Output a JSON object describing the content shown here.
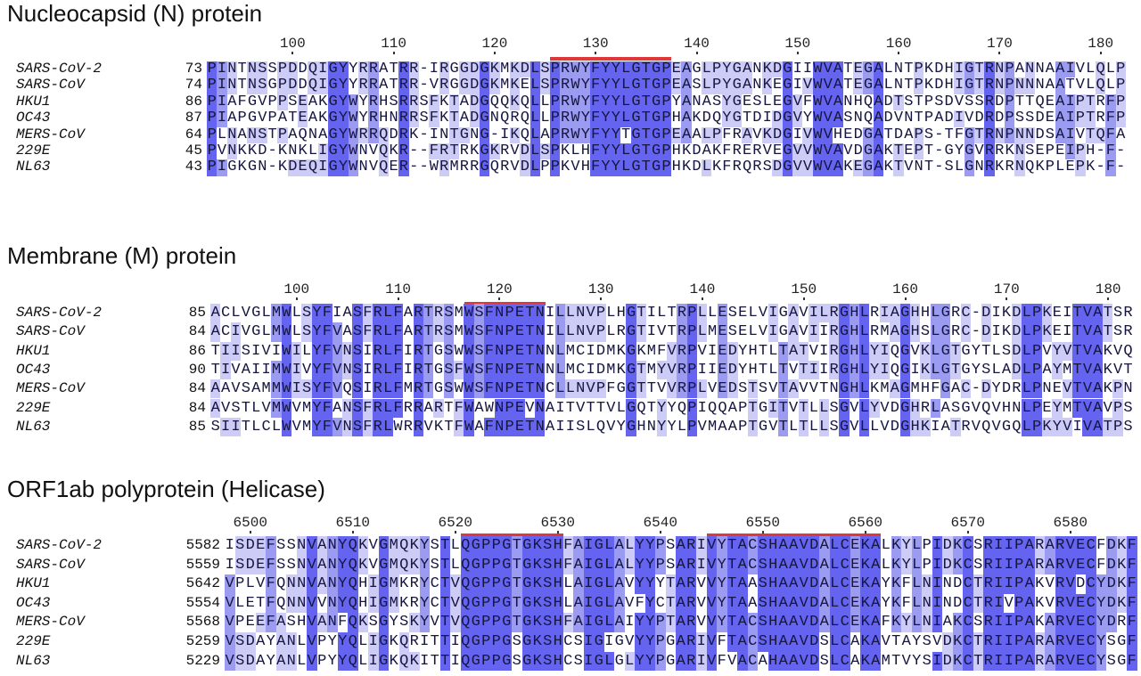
{
  "colors": {
    "high": "#6464f0",
    "mid": "#9b9bf2",
    "low": "#ccccf6",
    "motif_bar": "#e0383a"
  },
  "panels": [
    {
      "title": "Nucleocapsid (N) protein",
      "ruler": [
        100,
        110,
        120,
        130,
        140,
        150,
        160,
        170,
        180
      ],
      "motifs": [
        [
          126,
          137
        ]
      ],
      "sequences": [
        {
          "name": "SARS-CoV-2",
          "start": "73",
          "seq": "PINTNSSPDDQIGYYRRATRR-IRGGDGKMKDLSPRWYFYYLGTGPEAGLPYGANKDGIIWVATEGALNTPKDHIGTRNPANNAAIVLQLP"
        },
        {
          "name": "SARS-CoV",
          "start": "74",
          "seq": "PINTNSGPDDQIGYYRRATRR-VRGGDGKMKELSPRWYFYYLGTGPEASLPYGANKEGIVWVATEGALNTPKDHIGTRNPNNNAATVLQLP"
        },
        {
          "name": "HKU1",
          "start": "86",
          "seq": "PIAFGVPPSEAKGYWYRHSRRSFKTADGQQKQLLPRWYFYYLGTGPYANASYGESLEGVFWVANHQADTSTPSDVSSRDPTTQEAIPTRFP"
        },
        {
          "name": "OC43",
          "start": "87",
          "seq": "PIAPGVPATEAKGYWYRHNRRSFKTADGNQRQLLPRWYFYYLGTGPHAKDQYGTDIDGVYWVASNQADVNTPADIVDRDPSSDEAIPTRFP"
        },
        {
          "name": "MERS-CoV",
          "start": "64",
          "seq": "PLNANSTPAQNAGYWRRQDRK-INTGNG-IKQLAPRWYFYYTGTGPEAALPFRAVKDGIVWVHEDGATDAPS-TFGTRNPNNDSAIVTQFA"
        },
        {
          "name": "229E",
          "start": "45",
          "seq": "PVNKKD-KNKLIGYWNVQKR--FRTRKGKRVDLSPKLHFYYLGTGPHKDAKFRERVEGVVWVAVDGAKTEPT-GYGVRRKNSEPEIPH-F-"
        },
        {
          "name": "NL63",
          "start": "43",
          "seq": "PIGKGN-KDEQIGYWNVQER--WRMRRGQRVDLPPKVHFYYLGTGPHKDLKFRQRSDGVVWVAKEGAKTVNT-SLGNRKRNQKPLEPK-F-"
        }
      ]
    },
    {
      "title": "Membrane (M) protein",
      "ruler": [
        100,
        110,
        120,
        130,
        140,
        150,
        160,
        170,
        180
      ],
      "motifs": [
        [
          117,
          124
        ]
      ],
      "sequences": [
        {
          "name": "SARS-CoV-2",
          "start": "85",
          "seq": "ACLVGLMWLSYFIASFRLFARTRSMWSFNPETNILLNVPLHGTILTRPLLESELVIGAVILRGHLRIAGHHLGRC-DIKDLPKEITVATSR"
        },
        {
          "name": "SARS-CoV",
          "start": "84",
          "seq": "ACIVGLMWLSYFVASFRLFARTRSMWSFNPETNILLNVPLRGTIVTRPLMESELVIGAVIIRGHLRMAGHSLGRC-DIKDLPKEITVATSR"
        },
        {
          "name": "HKU1",
          "start": "86",
          "seq": "TIISIVIWILYFVNSIRLFIRTGSWWSFNPETNNLMCIDMKGKMFVRPVIEDYHTLTATVIRGHLYIQGVKLGTGYTLSDLPVYVTVAKVQ"
        },
        {
          "name": "OC43",
          "start": "90",
          "seq": "TIVAIIMWIVYFVNSIRLFIRTGSFWSFNPETNNLMCIDMKGTMYVRPIIEDYHTLTVTIIRGHLYIQGIKLGTGYSLADLPAYMTVAKVT"
        },
        {
          "name": "MERS-CoV",
          "start": "84",
          "seq": "AAVSAMMWISYFVQSIRLFMRTGSWWSFNPETNCLLNVPFGGTTVVRPLVEDSTSVTAVVTNGHLKMAGMHFGAC-DYDRLPNEVTVAKPN"
        },
        {
          "name": "229E",
          "start": "84",
          "seq": "AVSTLVMWVMYFANSFRLFRRARTFWAWNPEVNAITVTTVLGQTYYQPIQQAPTGITVTLLSGVLYVDGHRLASGVQVHNLPEYMTVAVPS"
        },
        {
          "name": "NL63",
          "start": "85",
          "seq": "SIITLCLWVMYFVNSFRLWRRVKTFWAFNPETNAIISLQVYGHNYYLPVMAAPTGVTLTLLSGVLLVDGHKIATRVQVGQLPKYVIVATPS"
        }
      ]
    },
    {
      "title": "ORF1ab polyprotein (Helicase)",
      "ruler": [
        6500,
        6510,
        6520,
        6530,
        6540,
        6550,
        6560,
        6570,
        6580
      ],
      "motifs": [
        [
          6521,
          6530
        ],
        [
          6545,
          6561
        ]
      ],
      "sequences": [
        {
          "name": "SARS-CoV-2",
          "start": "5582",
          "seq": "ISDEFSSNVANYQKVGMQKYSTLQGPPGTGKSHFAIGLALYYPSARIVYTACSHAAVDALCEKALKYLPIDKCSRIIPARARVECFDKF"
        },
        {
          "name": "SARS-CoV",
          "start": "5559",
          "seq": "ISDEFSSNVANYQKVGMQKYSTLQGPPGTGKSHFAIGLALYYPSARIVYTACSHAAVDALCEKALKYLPIDKCSRIIPARARVECFDKF"
        },
        {
          "name": "HKU1",
          "start": "5642",
          "seq": "VPLVFQNNVANYQHIGMKRYCTVQGPPGTGKSHLAIGLAVYYYTARVVYTAASHAAVDALCEKAYKFLNINDCTRIIPAKVRVDCYDKF"
        },
        {
          "name": "OC43",
          "start": "5554",
          "seq": "VLETFQNNVVNYQHIGMKRYCTVQGPPGTGKSHLAIGLAVFYCTARVVYTAASHAAVDALCEKAYKFLNINDCTRIVPAKVRVECYDKF"
        },
        {
          "name": "MERS-CoV",
          "start": "5568",
          "seq": "VPEEFASHVANFQKSGYSKYVTVQGPPGTGKSHFAIGLAIYYPTARVVYTACSHAAVDALCEKAFKYLNIAKCSRIIPAKARVECYDRF"
        },
        {
          "name": "229E",
          "start": "5259",
          "seq": "VSDAYANLVPYYQLIGKQRITTIQGPPGSGKSHCSIGIGVYYPGARIVFTACSHAAVDSLCAKAVTAYSVDKCTRIIPARARVECYSGF"
        },
        {
          "name": "NL63",
          "start": "5229",
          "seq": "VSDAYANLVPYYQLIGKQKITTIQGPPGSGKSHCSIGLGLYYPGARIVFVACAHAAVDSLCAKAMTVYSIDKCTRIIPARARVECYSGF"
        }
      ]
    }
  ]
}
